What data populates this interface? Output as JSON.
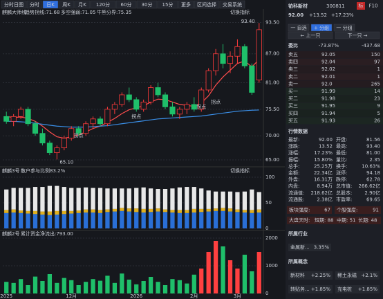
{
  "toolbar": [
    "分时日图",
    "分时",
    "日K",
    "周K",
    "月K",
    "120分",
    "60分",
    "30分",
    "15分",
    "更多",
    "区间选择",
    "交易系统"
  ],
  "main_panel": {
    "title": "麒麟大师线",
    "indicators": [
      "趋势拐线:71.68",
      "多空强弱:71.05",
      "牛熊分界:75.35"
    ],
    "switch": "切换指标",
    "high_label": "93.40",
    "low_label": "65.10",
    "turn_labels": [
      "拐点",
      "拐点",
      "拐点",
      "拐点"
    ],
    "ylim": [
      64,
      95
    ],
    "yticks": [
      {
        "value": 93.5,
        "label": "93.50"
      },
      {
        "value": 87,
        "label": "87.00"
      },
      {
        "value": 81,
        "label": "81.00"
      },
      {
        "value": 75.5,
        "label": "75.50"
      },
      {
        "value": 70,
        "label": "70.00"
      },
      {
        "value": 65,
        "label": "65.00"
      }
    ],
    "categories": [
      "2025",
      null,
      null,
      null,
      null,
      null,
      null,
      null,
      null,
      "12月",
      null,
      null,
      null,
      null,
      null,
      null,
      null,
      null,
      "2026",
      null,
      null,
      null,
      null,
      null,
      null,
      null,
      "2月",
      null,
      null,
      null,
      null,
      null,
      "3月",
      null,
      null,
      null
    ],
    "candles": [
      [
        74,
        75,
        72.5,
        73
      ],
      [
        73,
        74.5,
        72,
        74
      ],
      [
        74,
        76,
        73.5,
        75.5
      ],
      [
        75.5,
        76,
        72,
        72.5
      ],
      [
        72.5,
        73,
        70,
        70.5
      ],
      [
        70.5,
        71.5,
        68,
        68.5
      ],
      [
        68.5,
        69,
        66,
        66.5
      ],
      [
        66.5,
        68,
        65.1,
        67.5
      ],
      [
        67.5,
        70,
        67,
        69.5
      ],
      [
        69.5,
        72,
        69,
        71.5
      ],
      [
        71.5,
        72,
        70,
        70.5
      ],
      [
        70.5,
        73,
        70,
        72.5
      ],
      [
        72.5,
        74,
        71.5,
        73.5
      ],
      [
        73.5,
        74,
        72,
        72.5
      ],
      [
        72.5,
        76,
        72,
        75.5
      ],
      [
        75.5,
        77,
        74.5,
        76.5
      ],
      [
        76.5,
        79,
        76,
        78.5
      ],
      [
        78.5,
        80,
        77,
        77.5
      ],
      [
        77.5,
        78,
        75,
        75.5
      ],
      [
        75.5,
        77.5,
        75,
        77
      ],
      [
        77,
        80.5,
        76.5,
        80
      ],
      [
        80,
        81,
        78,
        78.5
      ],
      [
        78.5,
        79,
        75.5,
        76
      ],
      [
        76,
        77,
        74,
        74.5
      ],
      [
        74.5,
        76,
        73.5,
        75.5
      ],
      [
        75.5,
        77,
        74.5,
        76.5
      ],
      [
        76.5,
        78,
        75,
        75.5
      ],
      [
        75.5,
        80,
        75,
        79.5
      ],
      [
        79.5,
        84,
        79,
        83.5
      ],
      [
        83.5,
        88,
        82.5,
        87
      ],
      [
        87,
        89,
        84,
        85
      ],
      [
        85,
        87.5,
        83,
        86.5
      ],
      [
        86.5,
        90,
        85,
        88.5
      ],
      [
        88.5,
        89,
        84,
        84.5
      ],
      [
        84.5,
        85,
        78.5,
        79
      ],
      [
        81.56,
        93.4,
        81,
        92
      ]
    ],
    "lines": [
      {
        "color": "#ff4d4d",
        "values": [
          74,
          73.8,
          73.9,
          73.6,
          73,
          72,
          70.8,
          69.8,
          69.5,
          69.8,
          70.2,
          70.8,
          71.5,
          72,
          72.8,
          73.6,
          74.6,
          75.4,
          75.8,
          76.2,
          77,
          77.6,
          77.5,
          77,
          76.5,
          76.3,
          76.1,
          76.8,
          78.3,
          80.5,
          82.2,
          83.6,
          85,
          85.5,
          84.3,
          85.8
        ]
      },
      {
        "color": "#3a8ee6",
        "values": [
          73,
          73,
          72.9,
          72.8,
          72.6,
          72.4,
          72.2,
          72,
          71.9,
          71.8,
          71.8,
          71.8,
          71.9,
          72,
          72.1,
          72.3,
          72.5,
          72.7,
          72.9,
          73.1,
          73.3,
          73.5,
          73.6,
          73.7,
          73.8,
          73.9,
          74,
          74.1,
          74.3,
          74.5,
          74.7,
          74.9,
          75.1,
          75.2,
          75.3,
          75.35
        ]
      }
    ]
  },
  "panel2": {
    "title": "麒麟3号",
    "indicator": "散户参与比例83.2%",
    "switch": "切换指标",
    "ylim": [
      0,
      100
    ],
    "yticks": [
      100,
      50,
      0
    ],
    "series": [
      {
        "color": "#2a6fd6",
        "values": [
          30,
          31,
          30,
          29,
          28,
          27,
          26,
          27,
          28,
          29,
          30,
          31,
          31,
          30,
          32,
          33,
          34,
          33,
          32,
          31,
          32,
          33,
          32,
          31,
          30,
          30,
          31,
          32,
          33,
          34,
          34,
          33,
          32,
          31,
          30,
          31
        ]
      },
      {
        "color": "#e0b020",
        "values": [
          6,
          6,
          5,
          5,
          6,
          6,
          7,
          7,
          6,
          5,
          5,
          6,
          6,
          6,
          5,
          5,
          6,
          6,
          7,
          7,
          6,
          6,
          5,
          5,
          6,
          6,
          7,
          6,
          5,
          5,
          6,
          6,
          5,
          5,
          6,
          6
        ]
      },
      {
        "color": "#e8e8e8",
        "values": [
          40,
          42,
          44,
          45,
          47,
          48,
          50,
          49,
          47,
          45,
          44,
          43,
          42,
          43,
          41,
          40,
          38,
          39,
          40,
          42,
          40,
          38,
          40,
          42,
          44,
          45,
          43,
          40,
          36,
          33,
          32,
          33,
          34,
          36,
          40,
          34
        ]
      }
    ]
  },
  "panel3": {
    "title": "麒麟2号",
    "indicator": "累计资金净流出:793.00",
    "switch": "切换指标",
    "ylim": [
      0,
      2000
    ],
    "yticks": [
      2000,
      1000,
      0
    ],
    "values": [
      420,
      380,
      520,
      300,
      610,
      450,
      700,
      380,
      560,
      480,
      300,
      420,
      520,
      460,
      640,
      380,
      720,
      500,
      330,
      450,
      600,
      420,
      300,
      520,
      480,
      360,
      680,
      900,
      1500,
      1900,
      1700,
      1200,
      900,
      1400,
      800,
      1500
    ]
  },
  "quote": {
    "name": "铂科新材",
    "code": "300811",
    "price": "92.00",
    "change": "+13.52",
    "change_pct": "+17.23%",
    "tag": "标",
    "f10": "F10"
  },
  "buttons": [
    "一 自选",
    "+ 分组",
    "一 分组",
    "← 上一只",
    "下一只 →"
  ],
  "order_book": {
    "title": "委比",
    "ratio": "-73.87%",
    "diff": "-437.68",
    "rows": [
      [
        "卖五",
        "92.05",
        "150"
      ],
      [
        "卖四",
        "92.04",
        "97"
      ],
      [
        "卖三",
        "92.02",
        "1"
      ],
      [
        "卖二",
        "92.01",
        "1"
      ],
      [
        "卖一",
        "92.0",
        "265"
      ],
      [
        "买一",
        "91.99",
        "14"
      ],
      [
        "买二",
        "91.98",
        "23"
      ],
      [
        "买三",
        "91.95",
        "9"
      ],
      [
        "买四",
        "91.94",
        "5"
      ],
      [
        "买五",
        "91.93",
        "26"
      ]
    ]
  },
  "market": {
    "title": "行情数据",
    "rows": [
      [
        "最新:",
        "92.00",
        "开盘:",
        "81.56"
      ],
      [
        "涨跌:",
        "13.52",
        "最高:",
        "93.40"
      ],
      [
        "涨幅:",
        "17.23%",
        "最低:",
        "81.00"
      ],
      [
        "振幅:",
        "15.80%",
        "量比:",
        "2.35"
      ],
      [
        "总手:",
        "25.25万",
        "换手:",
        "10.63%"
      ],
      [
        "金额:",
        "22.34亿",
        "涨停:",
        "94.18"
      ],
      [
        "外盘:",
        "16.31万",
        "跌停:",
        "62.78"
      ],
      [
        "内盘:",
        "8.94万",
        "总市值:",
        "266.62亿"
      ],
      [
        "流通值:",
        "218.62亿",
        "总股本:",
        "2.90亿"
      ],
      [
        "流通股:",
        "2.38亿",
        "市盈率:",
        "69.65"
      ]
    ]
  },
  "strength": [
    [
      "板块强度:",
      "67"
    ],
    [
      "个股强度:",
      "91"
    ]
  ],
  "tianshi": [
    "大盘天时:",
    "短期: 88",
    "中期: 51",
    "长期: 48"
  ],
  "industry": {
    "title": "所属行业",
    "items": [
      [
        "金属新...",
        "3.35%"
      ]
    ]
  },
  "concepts": {
    "title": "所属概念",
    "items": [
      [
        "新材料",
        "+2.25%"
      ],
      [
        "稀土永磁",
        "+2.1%"
      ],
      [
        "转贴务...",
        "+1.85%"
      ],
      [
        "充电桩",
        "+1.85%"
      ]
    ]
  }
}
